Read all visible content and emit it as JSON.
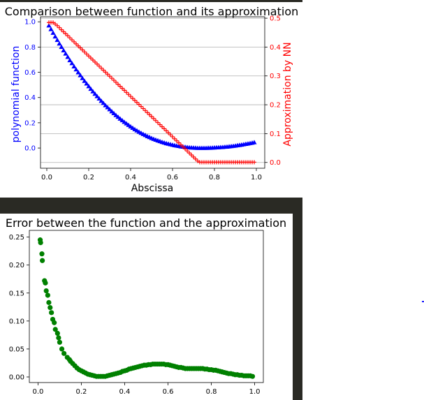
{
  "chart_data": [
    {
      "type": "scatter",
      "title": "Comparison between function and its approximation",
      "xlabel": "Abscissa",
      "ylabel": "polynomial function",
      "y2label": "Approximation by NN",
      "xlim": [
        -0.03,
        1.04
      ],
      "ylim": [
        -0.16,
        1.04
      ],
      "y2lim": [
        -0.02,
        0.505
      ],
      "xticks": [
        "0.0",
        "0.2",
        "0.4",
        "0.6",
        "0.8",
        "1.0"
      ],
      "yticks": [
        "0.0",
        "0.2",
        "0.4",
        "0.6",
        "0.8",
        "1.0"
      ],
      "y2ticks": [
        "0.0",
        "0.1",
        "0.2",
        "0.3",
        "0.4",
        "0.5"
      ],
      "grid": true,
      "colors": {
        "left": "#0000ff",
        "right": "#ff0000",
        "grid": "#b0b0b0"
      },
      "series": [
        {
          "axis": "left",
          "marker": "triangle",
          "color": "#0000ff",
          "x": [
            0.01,
            0.02,
            0.03,
            0.04,
            0.05,
            0.06,
            0.07,
            0.08,
            0.09,
            0.1,
            0.11,
            0.12,
            0.13,
            0.14,
            0.15,
            0.16,
            0.17,
            0.18,
            0.19,
            0.2,
            0.21,
            0.22,
            0.23,
            0.24,
            0.25,
            0.26,
            0.27,
            0.28,
            0.29,
            0.3,
            0.31,
            0.32,
            0.33,
            0.34,
            0.35,
            0.36,
            0.37,
            0.38,
            0.39,
            0.4,
            0.41,
            0.42,
            0.43,
            0.44,
            0.45,
            0.46,
            0.47,
            0.48,
            0.49,
            0.5,
            0.51,
            0.52,
            0.53,
            0.54,
            0.55,
            0.56,
            0.57,
            0.58,
            0.59,
            0.6,
            0.61,
            0.62,
            0.63,
            0.64,
            0.65,
            0.66,
            0.67,
            0.68,
            0.69,
            0.7,
            0.71,
            0.72,
            0.73,
            0.74,
            0.75,
            0.76,
            0.77,
            0.78,
            0.79,
            0.8,
            0.81,
            0.82,
            0.83,
            0.84,
            0.85,
            0.86,
            0.87,
            0.88,
            0.89,
            0.9,
            0.91,
            0.92,
            0.93,
            0.94,
            0.95,
            0.96,
            0.97,
            0.98,
            0.99
          ],
          "y": [
            0.97,
            0.941,
            0.912,
            0.883,
            0.855,
            0.827,
            0.8,
            0.773,
            0.747,
            0.721,
            0.695,
            0.671,
            0.646,
            0.622,
            0.599,
            0.576,
            0.553,
            0.531,
            0.51,
            0.489,
            0.468,
            0.448,
            0.429,
            0.41,
            0.391,
            0.373,
            0.356,
            0.338,
            0.322,
            0.306,
            0.29,
            0.275,
            0.26,
            0.246,
            0.232,
            0.219,
            0.206,
            0.194,
            0.182,
            0.17,
            0.159,
            0.148,
            0.138,
            0.128,
            0.119,
            0.11,
            0.102,
            0.093,
            0.086,
            0.078,
            0.071,
            0.065,
            0.059,
            0.053,
            0.047,
            0.042,
            0.037,
            0.033,
            0.029,
            0.025,
            0.021,
            0.018,
            0.015,
            0.012,
            0.01,
            0.008,
            0.006,
            0.004,
            0.003,
            0.002,
            0.001,
            0.0,
            0.0,
            0.0,
            0.0,
            0.0,
            0.001,
            0.001,
            0.002,
            0.003,
            0.004,
            0.005,
            0.006,
            0.007,
            0.009,
            0.01,
            0.012,
            0.014,
            0.016,
            0.018,
            0.021,
            0.023,
            0.026,
            0.029,
            0.032,
            0.035,
            0.038,
            0.041,
            0.045
          ]
        },
        {
          "axis": "right",
          "marker": "plus",
          "color": "#ff0000",
          "x": [
            0.01,
            0.02,
            0.03,
            0.04,
            0.05,
            0.06,
            0.07,
            0.08,
            0.09,
            0.1,
            0.11,
            0.12,
            0.13,
            0.14,
            0.15,
            0.16,
            0.17,
            0.18,
            0.19,
            0.2,
            0.21,
            0.22,
            0.23,
            0.24,
            0.25,
            0.26,
            0.27,
            0.28,
            0.29,
            0.3,
            0.31,
            0.32,
            0.33,
            0.34,
            0.35,
            0.36,
            0.37,
            0.38,
            0.39,
            0.4,
            0.41,
            0.42,
            0.43,
            0.44,
            0.45,
            0.46,
            0.47,
            0.48,
            0.49,
            0.5,
            0.51,
            0.52,
            0.53,
            0.54,
            0.55,
            0.56,
            0.57,
            0.58,
            0.59,
            0.6,
            0.61,
            0.62,
            0.63,
            0.64,
            0.65,
            0.66,
            0.67,
            0.68,
            0.69,
            0.7,
            0.71,
            0.72,
            0.73,
            0.74,
            0.75,
            0.76,
            0.77,
            0.78,
            0.79,
            0.8,
            0.81,
            0.82,
            0.83,
            0.84,
            0.85,
            0.86,
            0.87,
            0.88,
            0.89,
            0.9,
            0.91,
            0.92,
            0.93,
            0.94,
            0.95,
            0.96,
            0.97,
            0.98,
            0.99
          ],
          "y": [
            0.485,
            0.485,
            0.485,
            0.48,
            0.474,
            0.467,
            0.46,
            0.453,
            0.446,
            0.439,
            0.432,
            0.425,
            0.418,
            0.411,
            0.404,
            0.397,
            0.39,
            0.383,
            0.376,
            0.369,
            0.362,
            0.355,
            0.348,
            0.341,
            0.334,
            0.327,
            0.32,
            0.313,
            0.306,
            0.299,
            0.292,
            0.285,
            0.278,
            0.271,
            0.264,
            0.257,
            0.25,
            0.243,
            0.236,
            0.229,
            0.222,
            0.215,
            0.208,
            0.201,
            0.194,
            0.187,
            0.18,
            0.173,
            0.166,
            0.159,
            0.152,
            0.145,
            0.138,
            0.131,
            0.124,
            0.117,
            0.11,
            0.103,
            0.096,
            0.089,
            0.082,
            0.075,
            0.068,
            0.061,
            0.054,
            0.047,
            0.04,
            0.033,
            0.026,
            0.019,
            0.012,
            0.005,
            0.001,
            0.001,
            0.001,
            0.001,
            0.001,
            0.001,
            0.001,
            0.001,
            0.001,
            0.001,
            0.001,
            0.001,
            0.001,
            0.001,
            0.001,
            0.001,
            0.001,
            0.001,
            0.001,
            0.001,
            0.001,
            0.001,
            0.001,
            0.001,
            0.001,
            0.001,
            0.001
          ]
        }
      ]
    },
    {
      "type": "scatter",
      "title": "Error between the function and the approximation",
      "xlim": [
        -0.04,
        1.04
      ],
      "ylim": [
        -0.01,
        0.262
      ],
      "xticks": [
        "0.0",
        "0.2",
        "0.4",
        "0.6",
        "0.8",
        "1.0"
      ],
      "yticks": [
        "0.00",
        "0.05",
        "0.10",
        "0.15",
        "0.20",
        "0.25"
      ],
      "grid": false,
      "colors": {
        "points": "#008000"
      },
      "series": [
        {
          "marker": "circle",
          "color": "#008000",
          "x": [
            0.01,
            0.012,
            0.018,
            0.02,
            0.03,
            0.034,
            0.038,
            0.045,
            0.05,
            0.056,
            0.062,
            0.068,
            0.075,
            0.08,
            0.09,
            0.095,
            0.1,
            0.11,
            0.12,
            0.135,
            0.145,
            0.15,
            0.16,
            0.17,
            0.18,
            0.19,
            0.2,
            0.21,
            0.22,
            0.23,
            0.24,
            0.25,
            0.26,
            0.27,
            0.28,
            0.29,
            0.3,
            0.31,
            0.32,
            0.33,
            0.34,
            0.35,
            0.36,
            0.37,
            0.38,
            0.39,
            0.4,
            0.41,
            0.42,
            0.43,
            0.44,
            0.45,
            0.46,
            0.47,
            0.48,
            0.49,
            0.5,
            0.51,
            0.52,
            0.53,
            0.54,
            0.55,
            0.56,
            0.57,
            0.58,
            0.59,
            0.6,
            0.61,
            0.62,
            0.63,
            0.64,
            0.65,
            0.66,
            0.67,
            0.68,
            0.69,
            0.7,
            0.71,
            0.72,
            0.73,
            0.74,
            0.75,
            0.76,
            0.77,
            0.78,
            0.79,
            0.8,
            0.81,
            0.82,
            0.83,
            0.84,
            0.85,
            0.86,
            0.87,
            0.88,
            0.89,
            0.9,
            0.91,
            0.92,
            0.93,
            0.94,
            0.95,
            0.96,
            0.97,
            0.98,
            0.99
          ],
          "y": [
            0.245,
            0.24,
            0.22,
            0.208,
            0.172,
            0.168,
            0.154,
            0.146,
            0.133,
            0.124,
            0.115,
            0.103,
            0.097,
            0.085,
            0.078,
            0.07,
            0.062,
            0.05,
            0.042,
            0.035,
            0.031,
            0.028,
            0.024,
            0.02,
            0.016,
            0.013,
            0.011,
            0.009,
            0.007,
            0.005,
            0.004,
            0.003,
            0.002,
            0.001,
            0.001,
            0.001,
            0.001,
            0.001,
            0.002,
            0.003,
            0.004,
            0.005,
            0.006,
            0.007,
            0.008,
            0.01,
            0.011,
            0.012,
            0.014,
            0.015,
            0.016,
            0.017,
            0.018,
            0.019,
            0.02,
            0.021,
            0.021,
            0.022,
            0.022,
            0.023,
            0.023,
            0.023,
            0.023,
            0.023,
            0.023,
            0.022,
            0.022,
            0.021,
            0.02,
            0.019,
            0.018,
            0.017,
            0.017,
            0.016,
            0.015,
            0.015,
            0.015,
            0.015,
            0.015,
            0.015,
            0.015,
            0.015,
            0.015,
            0.014,
            0.014,
            0.013,
            0.013,
            0.012,
            0.012,
            0.011,
            0.01,
            0.009,
            0.008,
            0.007,
            0.006,
            0.006,
            0.005,
            0.004,
            0.004,
            0.003,
            0.003,
            0.002,
            0.002,
            0.002,
            0.002,
            0.001
          ]
        }
      ]
    }
  ]
}
